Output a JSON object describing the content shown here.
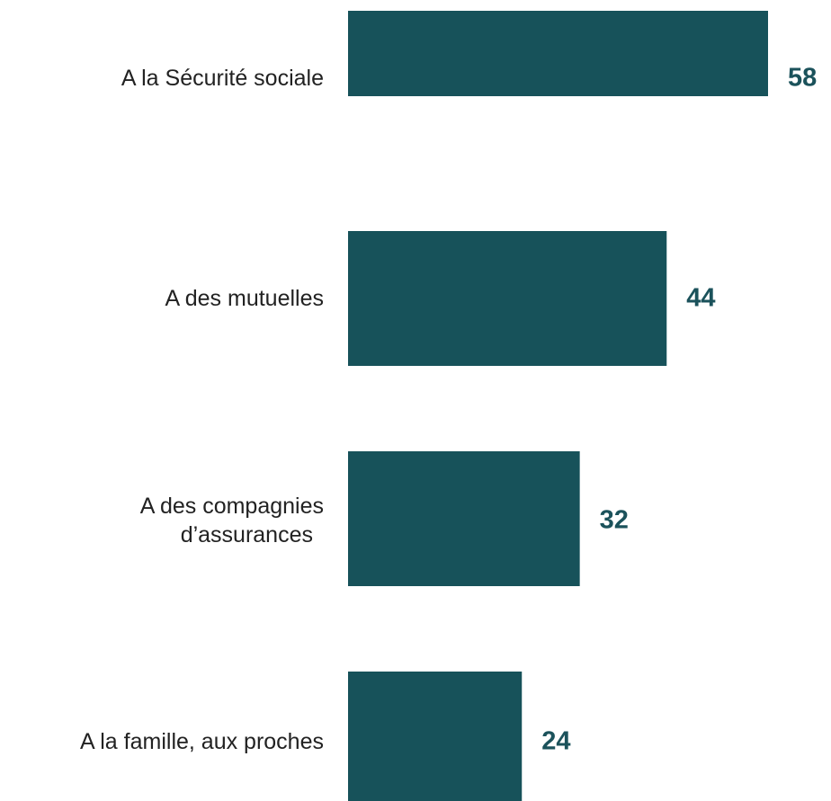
{
  "chart_data": {
    "type": "bar",
    "orientation": "horizontal",
    "categories": [
      "A la Sécurité sociale",
      "A des mutuelles",
      "A des compagnies\nd’assurances",
      "A la famille, aux proches"
    ],
    "values": [
      58,
      44,
      32,
      24
    ],
    "color": "#17525a"
  }
}
